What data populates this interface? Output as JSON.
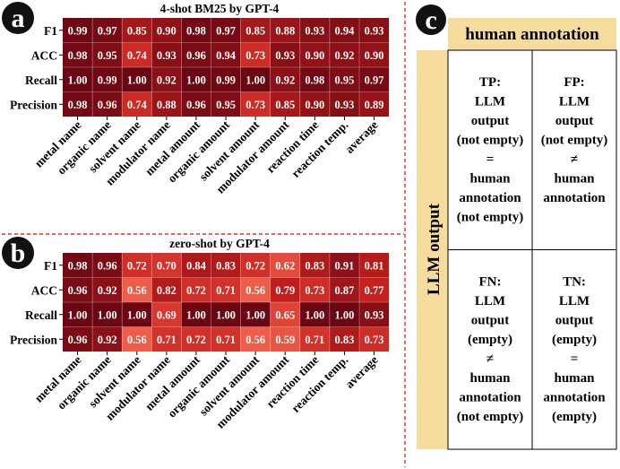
{
  "panels": {
    "a": {
      "letter": "a"
    },
    "b": {
      "letter": "b"
    },
    "c": {
      "letter": "c"
    }
  },
  "chart_data": [
    {
      "type": "heatmap",
      "id": "a",
      "title": "4-shot BM25 by GPT-4",
      "rows": [
        "F1",
        "ACC",
        "Recall",
        "Precision"
      ],
      "columns": [
        "metal name",
        "organic name",
        "solvent name",
        "modulator name",
        "metal amount",
        "organic amount",
        "solvent amount",
        "modulator amount",
        "reaction time",
        "reaction temp.",
        "average"
      ],
      "values": [
        [
          0.99,
          0.97,
          0.85,
          0.9,
          0.98,
          0.97,
          0.85,
          0.88,
          0.93,
          0.94,
          0.93
        ],
        [
          0.98,
          0.95,
          0.74,
          0.93,
          0.96,
          0.94,
          0.73,
          0.93,
          0.9,
          0.92,
          0.9
        ],
        [
          1.0,
          0.99,
          1.0,
          0.92,
          1.0,
          0.99,
          1.0,
          0.92,
          0.98,
          0.95,
          0.97
        ],
        [
          0.98,
          0.96,
          0.74,
          0.88,
          0.96,
          0.95,
          0.73,
          0.85,
          0.9,
          0.93,
          0.89
        ]
      ]
    },
    {
      "type": "heatmap",
      "id": "b",
      "title": "zero-shot by GPT-4",
      "rows": [
        "F1",
        "ACC",
        "Recall",
        "Precision"
      ],
      "columns": [
        "metal name",
        "organic name",
        "solvent name",
        "modulator name",
        "metal amount",
        "organic amount",
        "solvent amount",
        "modulator amount",
        "reaction time",
        "reaction temp.",
        "average"
      ],
      "values": [
        [
          0.98,
          0.96,
          0.72,
          0.7,
          0.84,
          0.83,
          0.72,
          0.62,
          0.83,
          0.91,
          0.81
        ],
        [
          0.96,
          0.92,
          0.56,
          0.82,
          0.72,
          0.71,
          0.56,
          0.79,
          0.73,
          0.87,
          0.77
        ],
        [
          1.0,
          1.0,
          1.0,
          0.69,
          1.0,
          1.0,
          1.0,
          0.65,
          1.0,
          1.0,
          0.93
        ],
        [
          0.96,
          0.92,
          0.56,
          0.71,
          0.72,
          0.71,
          0.56,
          0.59,
          0.71,
          0.83,
          0.73
        ]
      ]
    },
    {
      "type": "table",
      "id": "c",
      "column_header": "human annotation",
      "row_header": "LLM output",
      "cells": [
        [
          [
            "TP:",
            "LLM",
            "output",
            "(not empty)",
            "=",
            "human",
            "annotation",
            "(not empty)"
          ],
          [
            "FP:",
            "LLM",
            "output",
            "(not empty)",
            "≠",
            "human",
            "annotation"
          ]
        ],
        [
          [
            "FN:",
            "LLM",
            "output",
            "(empty)",
            "≠",
            "human",
            "annotation",
            "(not empty)"
          ],
          [
            "TN:",
            "LLM",
            "output",
            "(empty)",
            "=",
            "human",
            "annotation",
            "(empty)"
          ]
        ]
      ]
    }
  ],
  "colors": {
    "cell_low": "#f0604a",
    "cell_mid": "#c5201d",
    "cell_high": "#6b0713",
    "panel_circle": "#111111",
    "header_bg": "#f7dd9d",
    "divider": "#e0312f"
  }
}
